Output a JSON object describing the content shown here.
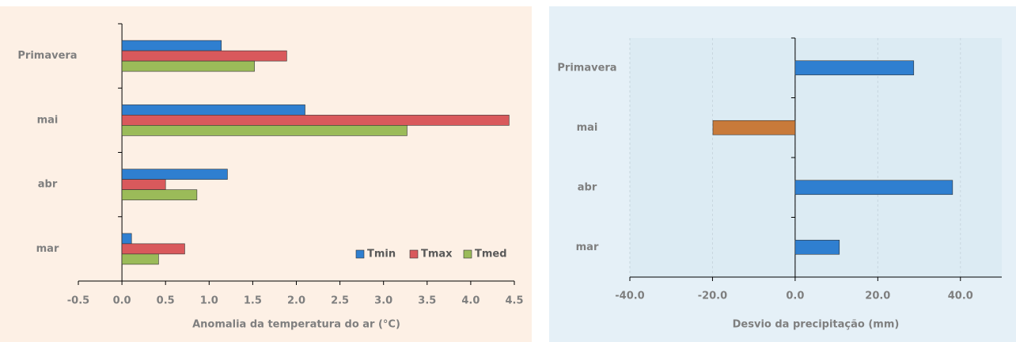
{
  "chart_data": [
    {
      "type": "hbar",
      "xlabel": "Anomalia da temperatura  do ar (°C)",
      "categories": [
        "Primavera",
        "mai",
        "abr",
        "mar"
      ],
      "series": [
        {
          "name": "Tmin",
          "color": "#2f7fd0",
          "values": [
            1.14,
            2.1,
            1.21,
            0.11
          ]
        },
        {
          "name": "Tmax",
          "color": "#d9595c",
          "values": [
            1.89,
            4.44,
            0.5,
            0.72
          ]
        },
        {
          "name": "Tmed",
          "color": "#9bbb59",
          "values": [
            1.52,
            3.27,
            0.86,
            0.42
          ]
        }
      ],
      "xlim": [
        -0.5,
        4.5
      ],
      "xticks": [
        -0.5,
        {
          "value": 0,
          "label": "0.0"
        },
        0.5,
        {
          "value": 1,
          "label": "1.0"
        },
        1.5,
        {
          "value": 2,
          "label": "2.0"
        },
        2.5,
        {
          "value": 3,
          "label": "3.0"
        },
        3.5,
        {
          "value": 4,
          "label": "4.0"
        },
        4.5
      ],
      "grid": false,
      "legend": "lower right"
    },
    {
      "type": "hbar",
      "xlabel": "Desvio da precipitação (mm)",
      "categories": [
        "Primavera",
        "mai",
        "abr",
        "mar"
      ],
      "series": [
        {
          "colors": [
            "#2f7fd0",
            "#c87a3a",
            "#2f7fd0",
            "#2f7fd0"
          ],
          "values": [
            28.7,
            -19.9,
            38.1,
            10.7
          ]
        }
      ],
      "xlim": [
        -40,
        50
      ],
      "xticks": [
        {
          "value": -40,
          "label": "-40.0"
        },
        {
          "value": -20,
          "label": "-20.0"
        },
        {
          "value": 0,
          "label": "0.0"
        },
        {
          "value": 20,
          "label": "20.0"
        },
        {
          "value": 40,
          "label": "40.0"
        }
      ],
      "grid": true
    }
  ]
}
